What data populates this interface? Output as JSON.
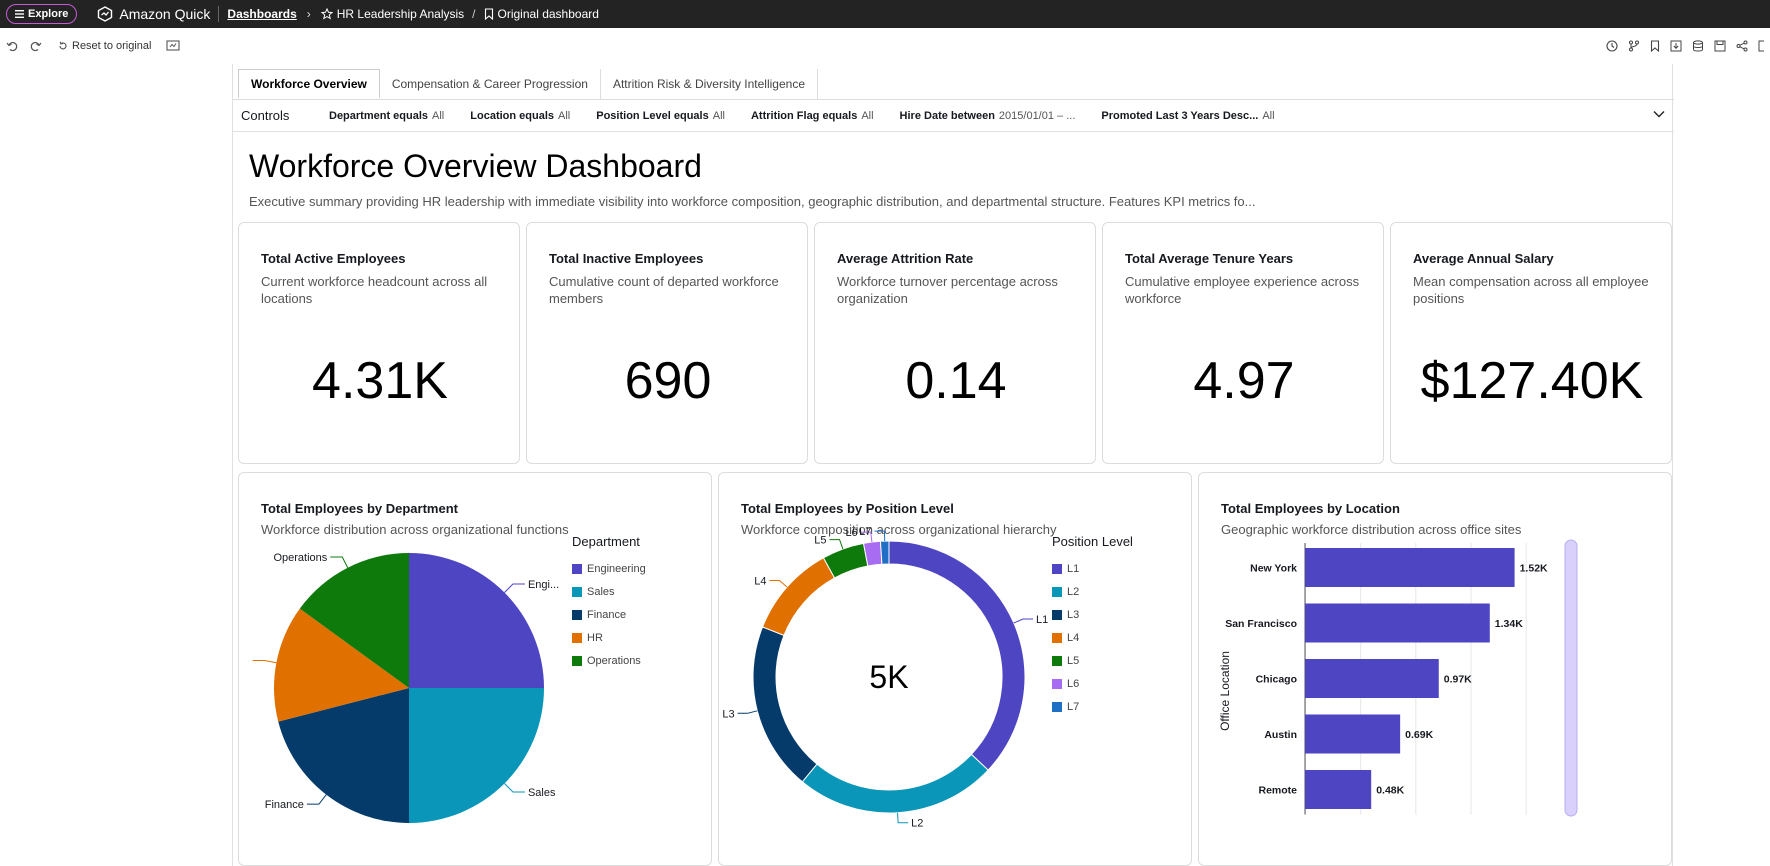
{
  "topbar": {
    "explore_label": "Explore",
    "brand": "Amazon Quick",
    "dashboards_link": "Dashboards",
    "analysis_name": "HR Leadership Analysis",
    "dashboard_name": "Original dashboard"
  },
  "toolbar": {
    "reset_label": "Reset to original"
  },
  "tabs": [
    {
      "label": "Workforce Overview",
      "active": true
    },
    {
      "label": "Compensation & Career Progression",
      "active": false
    },
    {
      "label": "Attrition Risk & Diversity Intelligence",
      "active": false
    }
  ],
  "controls": {
    "label": "Controls",
    "items": [
      {
        "name": "Department equals",
        "value": "All"
      },
      {
        "name": "Location equals",
        "value": "All"
      },
      {
        "name": "Position Level equals",
        "value": "All"
      },
      {
        "name": "Attrition Flag equals",
        "value": "All"
      },
      {
        "name": "Hire Date between",
        "value": "2015/01/01 – ..."
      },
      {
        "name": "Promoted Last 3 Years Desc...",
        "value": "All"
      }
    ]
  },
  "dashboard": {
    "title": "Workforce Overview Dashboard",
    "description": "Executive summary providing HR leadership with immediate visibility into workforce composition, geographic distribution, and departmental structure. Features KPI metrics fo..."
  },
  "kpis": [
    {
      "title": "Total Active Employees",
      "subtitle": "Current workforce headcount across all locations",
      "value": "4.31K"
    },
    {
      "title": "Total Inactive Employees",
      "subtitle": "Cumulative count of departed workforce members",
      "value": "690"
    },
    {
      "title": "Average Attrition Rate",
      "subtitle": "Workforce turnover percentage across organization",
      "value": "0.14"
    },
    {
      "title": "Total Average Tenure Years",
      "subtitle": "Cumulative employee experience across workforce",
      "value": "4.97"
    },
    {
      "title": "Average Annual Salary",
      "subtitle": "Mean compensation across all employee positions",
      "value": "$127.40K"
    }
  ],
  "panels": {
    "department": {
      "title": "Total Employees by Department",
      "subtitle": "Workforce distribution across organizational functions",
      "legend_title": "Department"
    },
    "position": {
      "title": "Total Employees by Position Level",
      "subtitle": "Workforce composition across organizational hierarchy",
      "legend_title": "Position Level",
      "center_label": "5K"
    },
    "location": {
      "title": "Total Employees by Location",
      "subtitle": "Geographic workforce distribution across office sites",
      "axis_label": "Office Location"
    }
  },
  "colors": {
    "Engineering": "#4e45c3",
    "Sales": "#0a96b8",
    "Finance": "#043b6b",
    "HR": "#e07100",
    "Operations": "#0e7a0b",
    "L1": "#4e45c3",
    "L2": "#0a96b8",
    "L3": "#043b6b",
    "L4": "#e07100",
    "L5": "#0e7a0b",
    "L6": "#a86cf2",
    "L7": "#1f6fc4",
    "bar": "#4e45c3"
  },
  "chart_data": [
    {
      "type": "pie",
      "categories": [
        "Engineering",
        "Sales",
        "Finance",
        "HR",
        "Operations"
      ],
      "values": [
        25,
        25,
        21,
        14,
        15
      ],
      "labels": [
        "Engi...",
        "Sales",
        "Finance",
        "",
        "Operations"
      ]
    },
    {
      "type": "pie",
      "donut": true,
      "categories": [
        "L1",
        "L2",
        "L3",
        "L4",
        "L5",
        "L6",
        "L7"
      ],
      "values": [
        37,
        24,
        20,
        11,
        5,
        2,
        1
      ],
      "labels": [
        "L1",
        "L2",
        "L3",
        "L4",
        "L5",
        "L6",
        "L7"
      ],
      "center": "5K"
    },
    {
      "type": "bar",
      "orientation": "horizontal",
      "categories": [
        "New York",
        "San Francisco",
        "Chicago",
        "Austin",
        "Remote"
      ],
      "values": [
        1.52,
        1.34,
        0.97,
        0.69,
        0.48
      ],
      "data_labels": [
        "1.52K",
        "1.34K",
        "0.97K",
        "0.69K",
        "0.48K"
      ],
      "ylabel": "Office Location",
      "xlim": [
        0,
        1.9
      ]
    }
  ]
}
